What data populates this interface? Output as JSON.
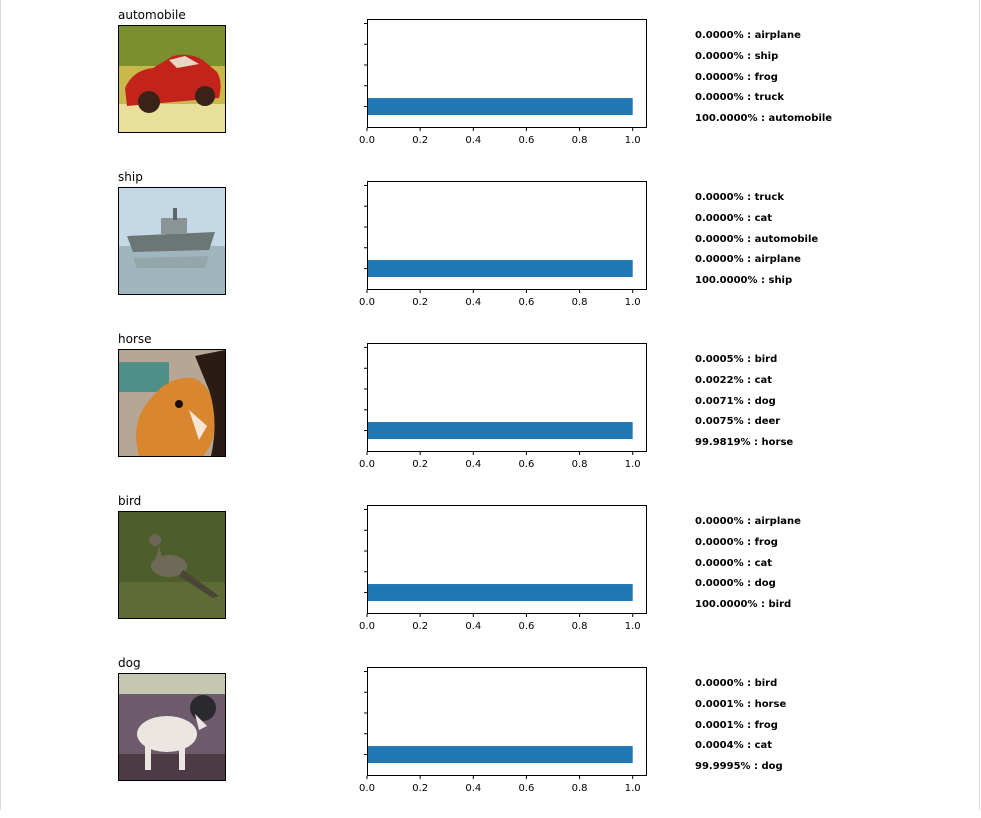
{
  "chart_data": [
    {
      "type": "bar",
      "orientation": "horizontal",
      "image_title": "automobile",
      "xlim": [
        0,
        1.05
      ],
      "xticks": [
        "0.0",
        "0.2",
        "0.4",
        "0.6",
        "0.8",
        "1.0"
      ],
      "values": [
        0,
        0,
        0,
        0,
        1.0
      ],
      "labels": [
        "0.0000% : airplane",
        "0.0000% : ship",
        "0.0000% : frog",
        "0.0000% : truck",
        "100.0000% : automobile"
      ],
      "bar_color": "#1f77b4",
      "thumbnail": "red car on green background"
    },
    {
      "type": "bar",
      "orientation": "horizontal",
      "image_title": "ship",
      "xlim": [
        0,
        1.05
      ],
      "xticks": [
        "0.0",
        "0.2",
        "0.4",
        "0.6",
        "0.8",
        "1.0"
      ],
      "values": [
        0,
        0,
        0,
        0,
        1.0
      ],
      "labels": [
        "0.0000% : truck",
        "0.0000% : cat",
        "0.0000% : automobile",
        "0.0000% : airplane",
        "100.0000% : ship"
      ],
      "bar_color": "#1f77b4",
      "thumbnail": "grey ship on water"
    },
    {
      "type": "bar",
      "orientation": "horizontal",
      "image_title": "horse",
      "xlim": [
        0,
        1.05
      ],
      "xticks": [
        "0.0",
        "0.2",
        "0.4",
        "0.6",
        "0.8",
        "1.0"
      ],
      "values": [
        5e-06,
        2.2e-05,
        7.1e-05,
        7.5e-05,
        0.999819
      ],
      "labels": [
        "0.0005% : bird",
        "0.0022% : cat",
        "0.0071% : dog",
        "0.0075% : deer",
        "99.9819% : horse"
      ],
      "bar_color": "#1f77b4",
      "thumbnail": "brown horse head"
    },
    {
      "type": "bar",
      "orientation": "horizontal",
      "image_title": "bird",
      "xlim": [
        0,
        1.05
      ],
      "xticks": [
        "0.0",
        "0.2",
        "0.4",
        "0.6",
        "0.8",
        "1.0"
      ],
      "values": [
        0,
        0,
        0,
        0,
        1.0
      ],
      "labels": [
        "0.0000% : airplane",
        "0.0000% : frog",
        "0.0000% : cat",
        "0.0000% : dog",
        "100.0000% : bird"
      ],
      "bar_color": "#1f77b4",
      "thumbnail": "grey bird on grass"
    },
    {
      "type": "bar",
      "orientation": "horizontal",
      "image_title": "dog",
      "xlim": [
        0,
        1.05
      ],
      "xticks": [
        "0.0",
        "0.2",
        "0.4",
        "0.6",
        "0.8",
        "1.0"
      ],
      "values": [
        0,
        1e-06,
        1e-06,
        4e-06,
        0.999995
      ],
      "labels": [
        "0.0000% : bird",
        "0.0001% : horse",
        "0.0001% : frog",
        "0.0004% : cat",
        "99.9995% : dog"
      ],
      "bar_color": "#1f77b4",
      "thumbnail": "white and black dog"
    }
  ]
}
